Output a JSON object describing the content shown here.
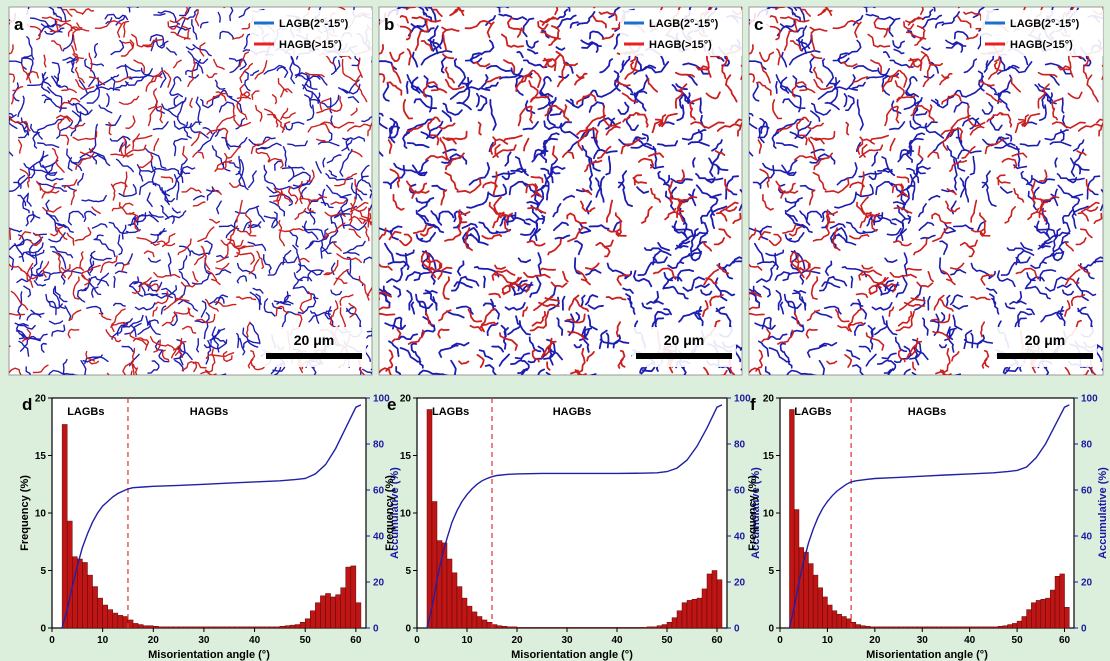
{
  "maps": [
    {
      "letter": "a",
      "scale": "20 μm",
      "legend": [
        "LAGB(2°-15°)",
        "HAGB(>15°)"
      ],
      "density": 0.55
    },
    {
      "letter": "b",
      "scale": "20 μm",
      "legend": [
        "LAGB(2°-15°)",
        "HAGB(>15°)"
      ],
      "density": 1.0
    },
    {
      "letter": "c",
      "scale": "20 μm",
      "legend": [
        "LAGB(2°-15°)",
        "HAGB(>15°)"
      ],
      "density": 0.8
    }
  ],
  "colors": {
    "lagb": "#1c1cb0",
    "hagb": "#cc1f1f",
    "bar": "#c01515",
    "cumulative": "#2020a8",
    "divider": "#e03030"
  },
  "chart_data": [
    {
      "type": "bar",
      "letter": "d",
      "xlabel": "Misorientation angle (°)",
      "ylabel": "Frequency (%)",
      "y2label": "Accumulative (%)",
      "xlim": [
        0,
        62
      ],
      "ylim": [
        0,
        20
      ],
      "y2lim": [
        0,
        100
      ],
      "xticks": [
        0,
        10,
        20,
        30,
        40,
        50,
        60
      ],
      "yticks": [
        0,
        5,
        10,
        15,
        20
      ],
      "y2ticks": [
        0,
        20,
        40,
        60,
        80,
        100
      ],
      "divider": 15,
      "regions": [
        "LAGBs",
        "HAGBs"
      ],
      "bins_x": [
        3,
        4,
        5,
        6,
        7,
        8,
        9,
        10,
        11,
        12,
        13,
        14,
        15,
        16,
        17,
        18,
        19,
        20,
        21,
        22,
        23,
        24,
        25,
        26,
        27,
        28,
        29,
        30,
        31,
        32,
        33,
        34,
        35,
        36,
        37,
        38,
        39,
        40,
        41,
        42,
        43,
        44,
        45,
        46,
        47,
        48,
        49,
        50,
        51,
        52,
        53,
        54,
        55,
        56,
        57,
        58,
        59,
        60,
        61
      ],
      "values": [
        17.7,
        9.3,
        6.2,
        6.0,
        5.7,
        4.6,
        3.6,
        2.6,
        2.0,
        1.6,
        1.3,
        1.1,
        1.0,
        0.7,
        0.4,
        0.3,
        0.2,
        0.2,
        0.15,
        0.1,
        0.1,
        0.1,
        0.1,
        0.1,
        0.1,
        0.1,
        0.1,
        0.1,
        0.1,
        0.1,
        0.1,
        0.1,
        0.1,
        0.1,
        0.1,
        0.1,
        0.1,
        0.1,
        0.1,
        0.1,
        0.1,
        0.1,
        0.1,
        0.15,
        0.2,
        0.25,
        0.3,
        0.5,
        0.8,
        1.5,
        2.2,
        2.8,
        3.0,
        2.7,
        2.9,
        3.5,
        5.3,
        5.4,
        2.2
      ],
      "cumulative_x": [
        2,
        3,
        4,
        5,
        6,
        7,
        8,
        9,
        10,
        11,
        12,
        13,
        14,
        15,
        16,
        18,
        20,
        25,
        30,
        35,
        40,
        45,
        48,
        50,
        52,
        54,
        56,
        58,
        60,
        61
      ],
      "cumulative": [
        0,
        8,
        18,
        27,
        35,
        41,
        46,
        50,
        53,
        55,
        57,
        58.5,
        59.5,
        60.5,
        61,
        61.3,
        61.6,
        62,
        62.5,
        63,
        63.5,
        64,
        64.5,
        65,
        67,
        71,
        78,
        87,
        96,
        97
      ]
    },
    {
      "type": "bar",
      "letter": "e",
      "xlabel": "Misorientation angle (°)",
      "ylabel": "Frequency (%)",
      "y2label": "Accumulative (%)",
      "xlim": [
        0,
        62
      ],
      "ylim": [
        0,
        20
      ],
      "y2lim": [
        0,
        100
      ],
      "xticks": [
        0,
        10,
        20,
        30,
        40,
        50,
        60
      ],
      "yticks": [
        0,
        5,
        10,
        15,
        20
      ],
      "y2ticks": [
        0,
        20,
        40,
        60,
        80,
        100
      ],
      "divider": 15,
      "regions": [
        "LAGBs",
        "HAGBs"
      ],
      "bins_x": [
        3,
        4,
        5,
        6,
        7,
        8,
        9,
        10,
        11,
        12,
        13,
        14,
        15,
        16,
        17,
        18,
        19,
        20,
        21,
        22,
        23,
        24,
        25,
        26,
        27,
        28,
        29,
        30,
        31,
        32,
        33,
        34,
        35,
        36,
        37,
        38,
        39,
        40,
        41,
        42,
        43,
        44,
        45,
        46,
        47,
        48,
        49,
        50,
        51,
        52,
        53,
        54,
        55,
        56,
        57,
        58,
        59,
        60,
        61
      ],
      "values": [
        19.0,
        11.0,
        7.6,
        7.4,
        6.0,
        4.8,
        3.6,
        2.6,
        1.9,
        1.4,
        1.0,
        0.7,
        0.5,
        0.3,
        0.2,
        0.15,
        0.1,
        0.1,
        0.05,
        0.05,
        0.05,
        0.05,
        0.05,
        0.05,
        0.05,
        0.05,
        0.05,
        0.05,
        0.05,
        0.05,
        0.05,
        0.05,
        0.05,
        0.05,
        0.05,
        0.05,
        0.05,
        0.05,
        0.05,
        0.05,
        0.05,
        0.05,
        0.05,
        0.05,
        0.1,
        0.1,
        0.2,
        0.3,
        0.5,
        0.9,
        1.5,
        2.2,
        2.4,
        2.5,
        2.6,
        3.4,
        4.7,
        5.0,
        4.2
      ],
      "cumulative_x": [
        2,
        3,
        4,
        5,
        6,
        7,
        8,
        9,
        10,
        11,
        12,
        13,
        14,
        15,
        16,
        18,
        20,
        25,
        30,
        35,
        40,
        45,
        48,
        50,
        52,
        54,
        56,
        58,
        60,
        61
      ],
      "cumulative": [
        0,
        9,
        21,
        31,
        39,
        46,
        51,
        55,
        58,
        60.5,
        62.5,
        64,
        65,
        65.8,
        66.3,
        66.8,
        67,
        67.2,
        67.2,
        67.2,
        67.2,
        67.3,
        67.5,
        68,
        69.5,
        73,
        79,
        87,
        96,
        97
      ]
    },
    {
      "type": "bar",
      "letter": "f",
      "xlabel": "Misorientation angle (°)",
      "ylabel": "Frequency (%)",
      "y2label": "Accumulative (%)",
      "xlim": [
        0,
        62
      ],
      "ylim": [
        0,
        20
      ],
      "y2lim": [
        0,
        100
      ],
      "xticks": [
        0,
        10,
        20,
        30,
        40,
        50,
        60
      ],
      "yticks": [
        0,
        5,
        10,
        15,
        20
      ],
      "y2ticks": [
        0,
        20,
        40,
        60,
        80,
        100
      ],
      "divider": 15,
      "regions": [
        "LAGBs",
        "HAGBs"
      ],
      "bins_x": [
        3,
        4,
        5,
        6,
        7,
        8,
        9,
        10,
        11,
        12,
        13,
        14,
        15,
        16,
        17,
        18,
        19,
        20,
        21,
        22,
        23,
        24,
        25,
        26,
        27,
        28,
        29,
        30,
        31,
        32,
        33,
        34,
        35,
        36,
        37,
        38,
        39,
        40,
        41,
        42,
        43,
        44,
        45,
        46,
        47,
        48,
        49,
        50,
        51,
        52,
        53,
        54,
        55,
        56,
        57,
        58,
        59,
        60,
        61
      ],
      "values": [
        19.0,
        10.3,
        7.0,
        6.6,
        5.6,
        4.6,
        3.5,
        2.7,
        2.0,
        1.5,
        1.2,
        1.0,
        0.8,
        0.5,
        0.3,
        0.2,
        0.15,
        0.1,
        0.1,
        0.1,
        0.1,
        0.1,
        0.1,
        0.1,
        0.1,
        0.1,
        0.1,
        0.1,
        0.1,
        0.1,
        0.1,
        0.1,
        0.1,
        0.1,
        0.1,
        0.1,
        0.1,
        0.1,
        0.1,
        0.1,
        0.1,
        0.1,
        0.1,
        0.1,
        0.15,
        0.2,
        0.3,
        0.4,
        0.6,
        1.0,
        1.6,
        2.2,
        2.4,
        2.5,
        2.6,
        3.3,
        4.5,
        4.7,
        1.8
      ],
      "cumulative_x": [
        2,
        3,
        4,
        5,
        6,
        7,
        8,
        9,
        10,
        11,
        12,
        13,
        14,
        15,
        16,
        18,
        20,
        25,
        30,
        35,
        40,
        45,
        48,
        50,
        52,
        54,
        56,
        58,
        60,
        61
      ],
      "cumulative": [
        0,
        9,
        20,
        29,
        37,
        43,
        48,
        52,
        55,
        57.5,
        59.5,
        61,
        62.5,
        63.5,
        64,
        64.5,
        65,
        65.5,
        66,
        66.5,
        67,
        67.5,
        68,
        68.5,
        70,
        74,
        80,
        88,
        96,
        97
      ]
    }
  ]
}
